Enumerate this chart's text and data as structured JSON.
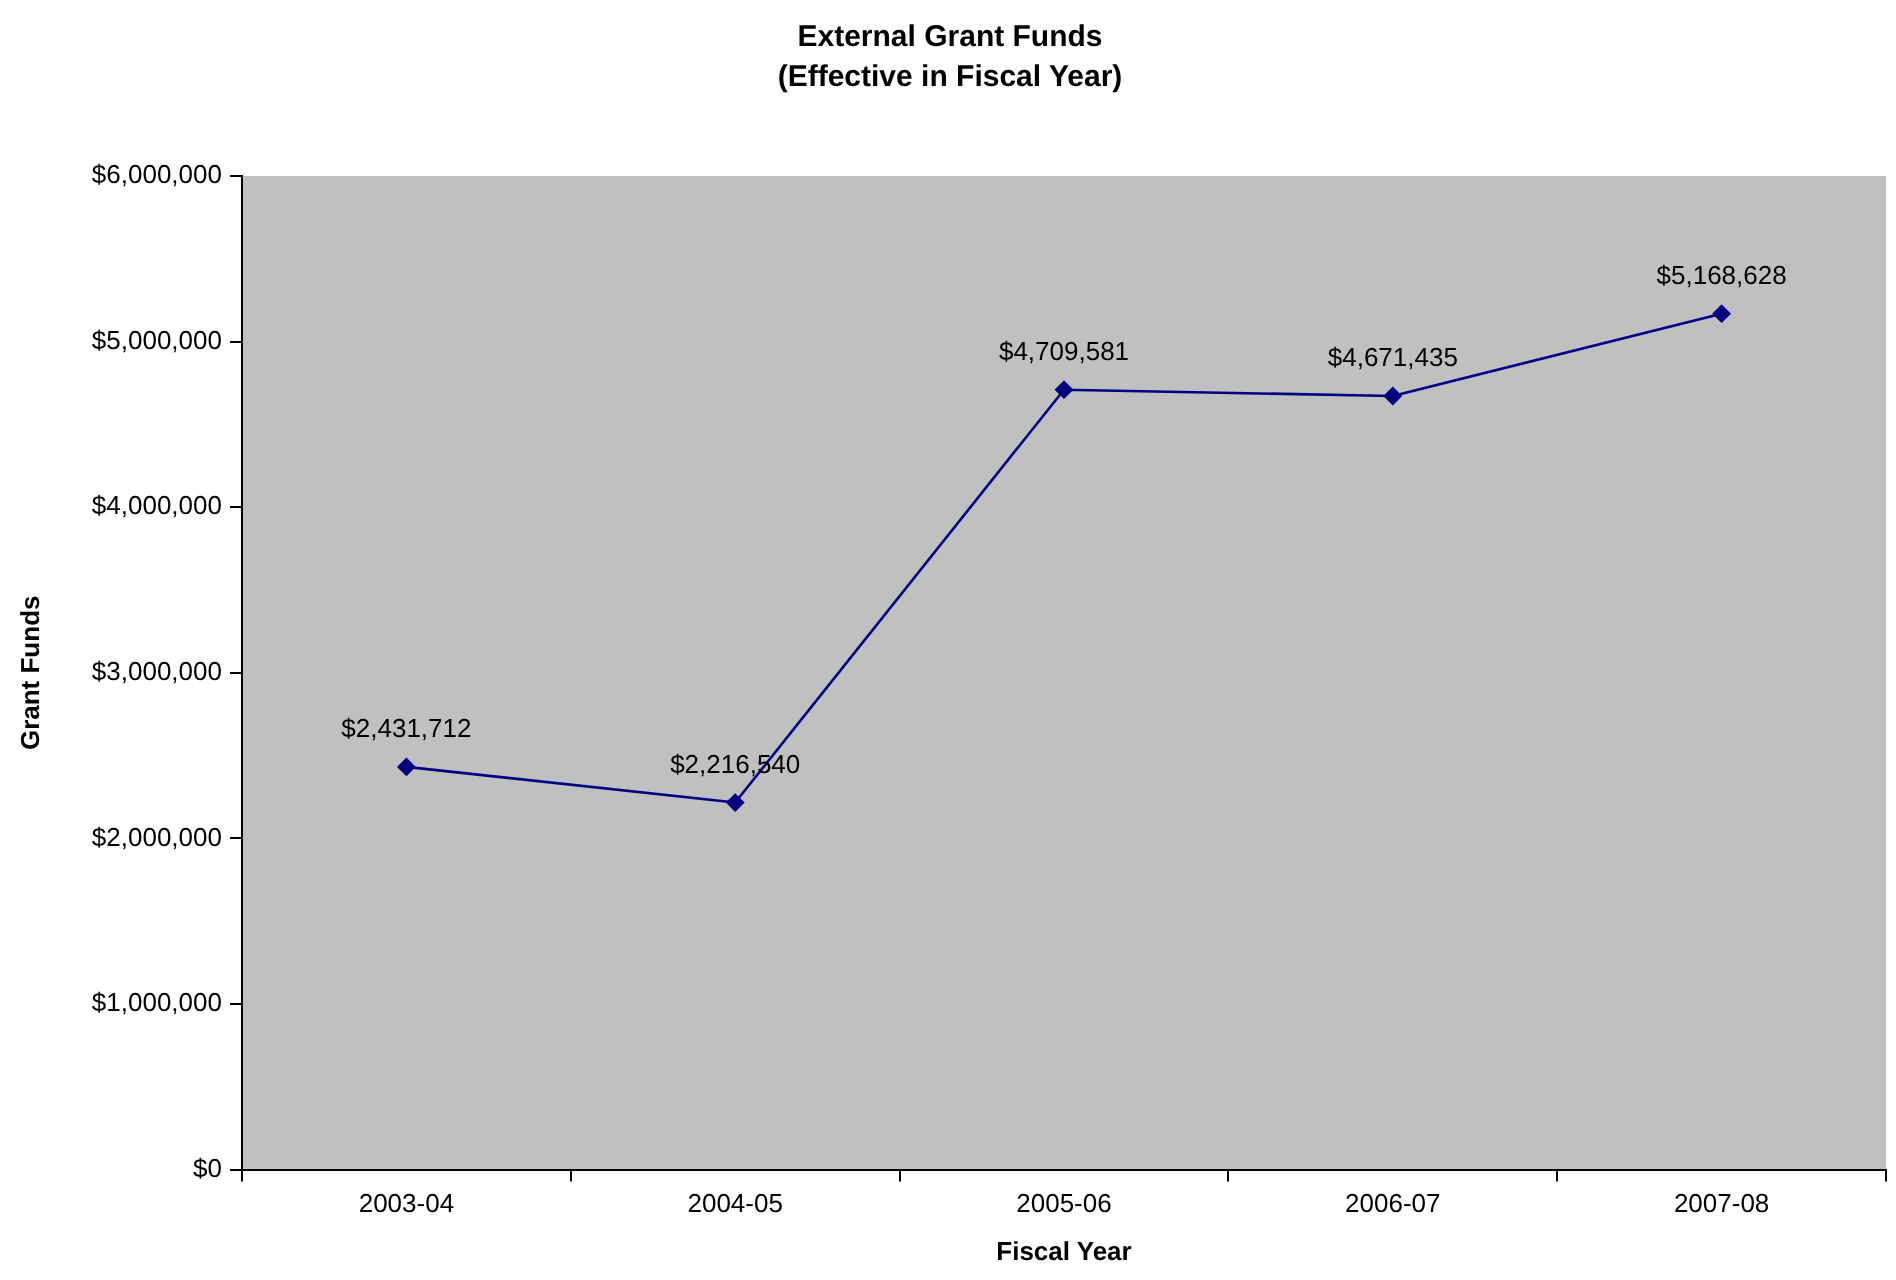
{
  "chart_data": {
    "type": "line",
    "title": "External Grant Funds",
    "subtitle": "(Effective in Fiscal Year)",
    "xlabel": "Fiscal Year",
    "ylabel": "Grant Funds",
    "categories": [
      "2003-04",
      "2004-05",
      "2005-06",
      "2006-07",
      "2007-08"
    ],
    "series": [
      {
        "color": "#000080",
        "values": [
          2431712,
          2216540,
          4709581,
          4671435,
          5168628
        ],
        "value_labels": [
          "$2,431,712",
          "$2,216,540",
          "$4,709,581",
          "$4,671,435",
          "$5,168,628"
        ]
      }
    ],
    "ylim": [
      0,
      6000000
    ],
    "yticks": [
      {
        "value": 0,
        "label": "$0"
      },
      {
        "value": 1000000,
        "label": "$1,000,000"
      },
      {
        "value": 2000000,
        "label": "$2,000,000"
      },
      {
        "value": 3000000,
        "label": "$3,000,000"
      },
      {
        "value": 4000000,
        "label": "$4,000,000"
      },
      {
        "value": 5000000,
        "label": "$5,000,000"
      },
      {
        "value": 6000000,
        "label": "$6,000,000"
      }
    ],
    "grid": false,
    "legend": false,
    "marker": "diamond",
    "line_style": "solid"
  }
}
